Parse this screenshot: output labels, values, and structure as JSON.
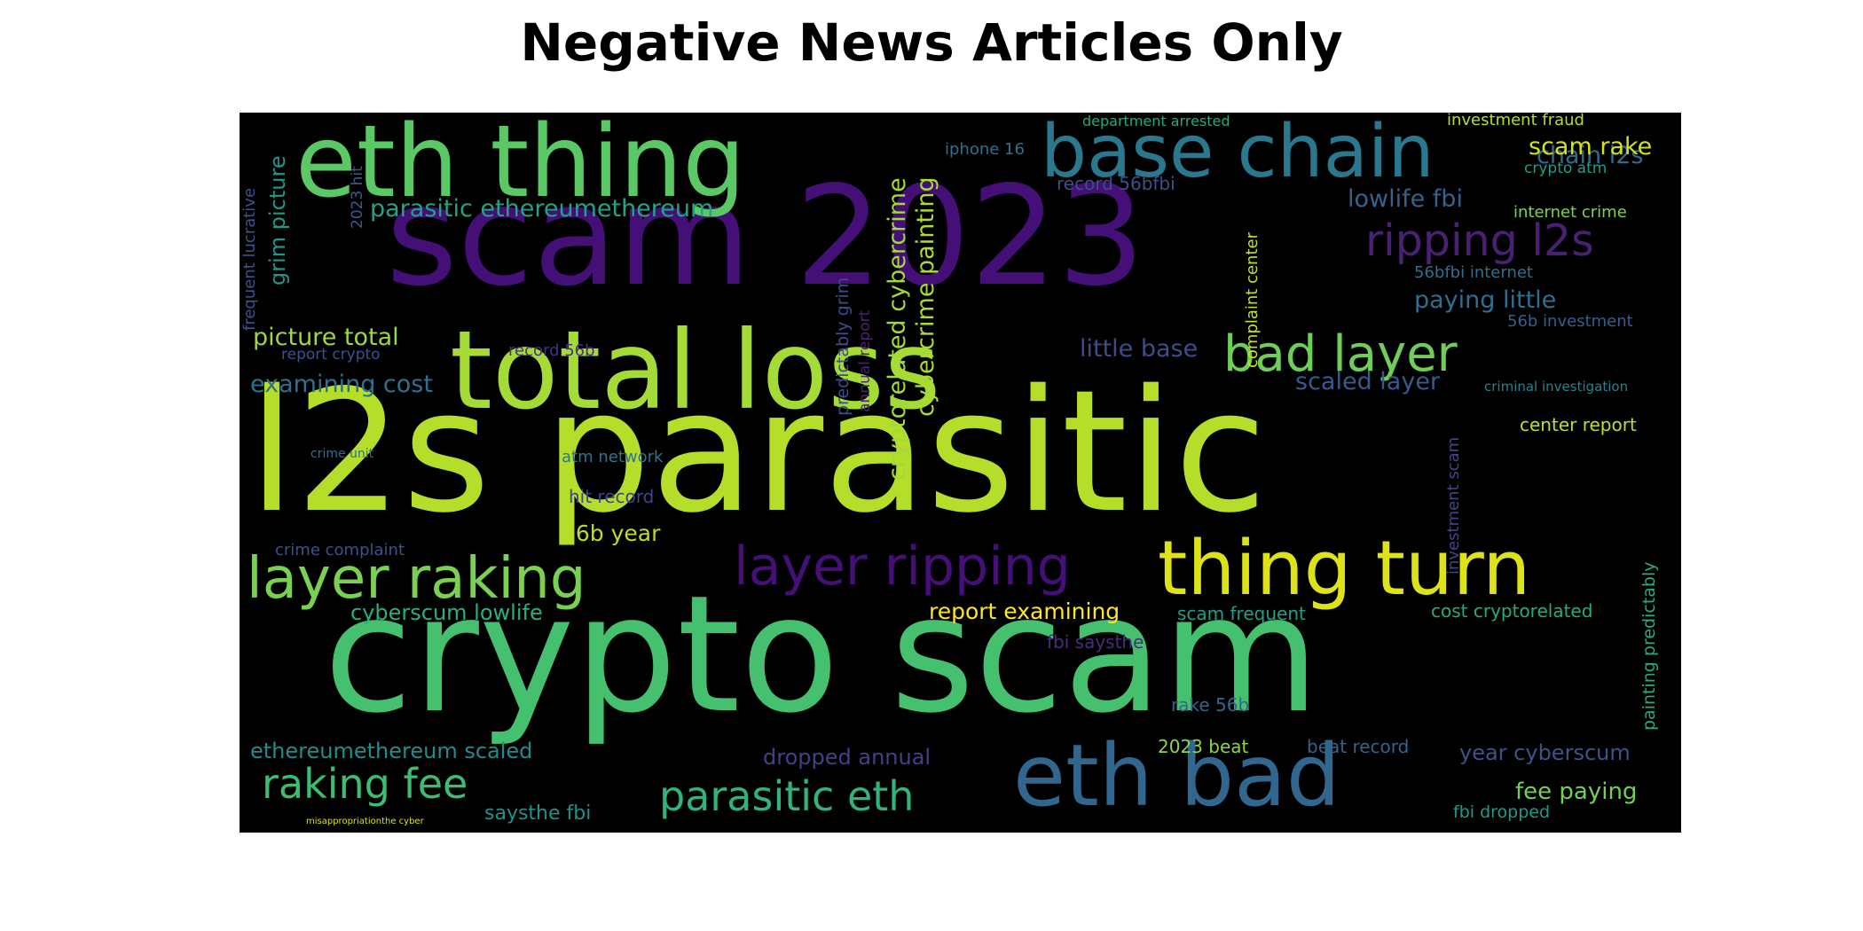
{
  "title": "Negative News Articles Only",
  "background_color": "#000000",
  "words": [
    {
      "text": "crypto scam",
      "color": "#45c06f"
    },
    {
      "text": "l2s parasitic",
      "color": "#b5de2b"
    },
    {
      "text": "scam 2023",
      "color": "#440f76"
    },
    {
      "text": "total loss",
      "color": "#a5db36"
    },
    {
      "text": "eth thing",
      "color": "#5ac864"
    },
    {
      "text": "base chain",
      "color": "#2a788e"
    },
    {
      "text": "eth bad",
      "color": "#31668e"
    },
    {
      "text": "thing turn",
      "color": "#dde318"
    },
    {
      "text": "layer raking",
      "color": "#7ad151"
    },
    {
      "text": "layer ripping",
      "color": "#440f76"
    },
    {
      "text": "bad layer",
      "color": "#6ece58"
    },
    {
      "text": "ripping l2s",
      "color": "#482173"
    },
    {
      "text": "parasitic eth",
      "color": "#2fb47c"
    },
    {
      "text": "raking fee",
      "color": "#3dbc74"
    },
    {
      "text": "cryptorelated cybercrime",
      "color": "#a2da37"
    },
    {
      "text": "cybercrime painting",
      "color": "#addc30"
    },
    {
      "text": "parasitic ethereumethereum",
      "color": "#20a386"
    },
    {
      "text": "picture total",
      "color": "#9dd93b"
    },
    {
      "text": "examining cost",
      "color": "#2c728e"
    },
    {
      "text": "little base",
      "color": "#3e4c8a"
    },
    {
      "text": "scaled layer",
      "color": "#375a8c"
    },
    {
      "text": "lowlife fbi",
      "color": "#34618d"
    },
    {
      "text": "paying little",
      "color": "#2e6e8e"
    },
    {
      "text": "chain l2s",
      "color": "#306a8e"
    },
    {
      "text": "scam rake",
      "color": "#d2e21b"
    },
    {
      "text": "grim picture",
      "color": "#1f988b"
    },
    {
      "text": "record 56bfbi",
      "color": "#3c4f8a"
    },
    {
      "text": "iphone 16",
      "color": "#2c718e"
    },
    {
      "text": "department arrested",
      "color": "#24aa83"
    },
    {
      "text": "investment fraud",
      "color": "#b2dd2d"
    },
    {
      "text": "crypto atm",
      "color": "#1f9e89"
    },
    {
      "text": "internet crime",
      "color": "#7fd34e"
    },
    {
      "text": "56bfbi internet",
      "color": "#2e6f8e"
    },
    {
      "text": "56b investment",
      "color": "#355f8d"
    },
    {
      "text": "criminal investigation",
      "color": "#26828e"
    },
    {
      "text": "center report",
      "color": "#bddf26"
    },
    {
      "text": "complaint center",
      "color": "#c8e020"
    },
    {
      "text": "investment scam",
      "color": "#3f4788"
    },
    {
      "text": "painting predictably",
      "color": "#27ad81"
    },
    {
      "text": "cost cryptorelated",
      "color": "#25ab82"
    },
    {
      "text": "year cyberscum",
      "color": "#3b528b"
    },
    {
      "text": "fee paying",
      "color": "#73d056"
    },
    {
      "text": "fbi dropped",
      "color": "#1e9b8a"
    },
    {
      "text": "beat record",
      "color": "#33638d"
    },
    {
      "text": "2023 beat",
      "color": "#8bd646"
    },
    {
      "text": "rake 56b",
      "color": "#31678e"
    },
    {
      "text": "scam frequent",
      "color": "#1fa187"
    },
    {
      "text": "report examining",
      "color": "#fde725"
    },
    {
      "text": "fbi saysthe",
      "color": "#472d7b"
    },
    {
      "text": "dropped annual",
      "color": "#424086"
    },
    {
      "text": "saysthe fbi",
      "color": "#21918c"
    },
    {
      "text": "ethereumethereum scaled",
      "color": "#228c8d"
    },
    {
      "text": "cyberscum lowlife",
      "color": "#29af7f"
    },
    {
      "text": "56b year",
      "color": "#bade28"
    },
    {
      "text": "hit record",
      "color": "#414487"
    },
    {
      "text": "atm network",
      "color": "#2a768e"
    },
    {
      "text": "record 56b",
      "color": "#46327e"
    },
    {
      "text": "crime complaint",
      "color": "#3b528b"
    },
    {
      "text": "crime unit",
      "color": "#2d708e"
    },
    {
      "text": "report crypto",
      "color": "#3a548c"
    },
    {
      "text": "frequent lucrative",
      "color": "#3b528b"
    },
    {
      "text": "2023 hit",
      "color": "#365c8d"
    },
    {
      "text": "predictably grim",
      "color": "#3d4e8a"
    },
    {
      "text": "annual report",
      "color": "#482475"
    },
    {
      "text": "misappropriationthe cyber",
      "color": "#dae319"
    }
  ]
}
